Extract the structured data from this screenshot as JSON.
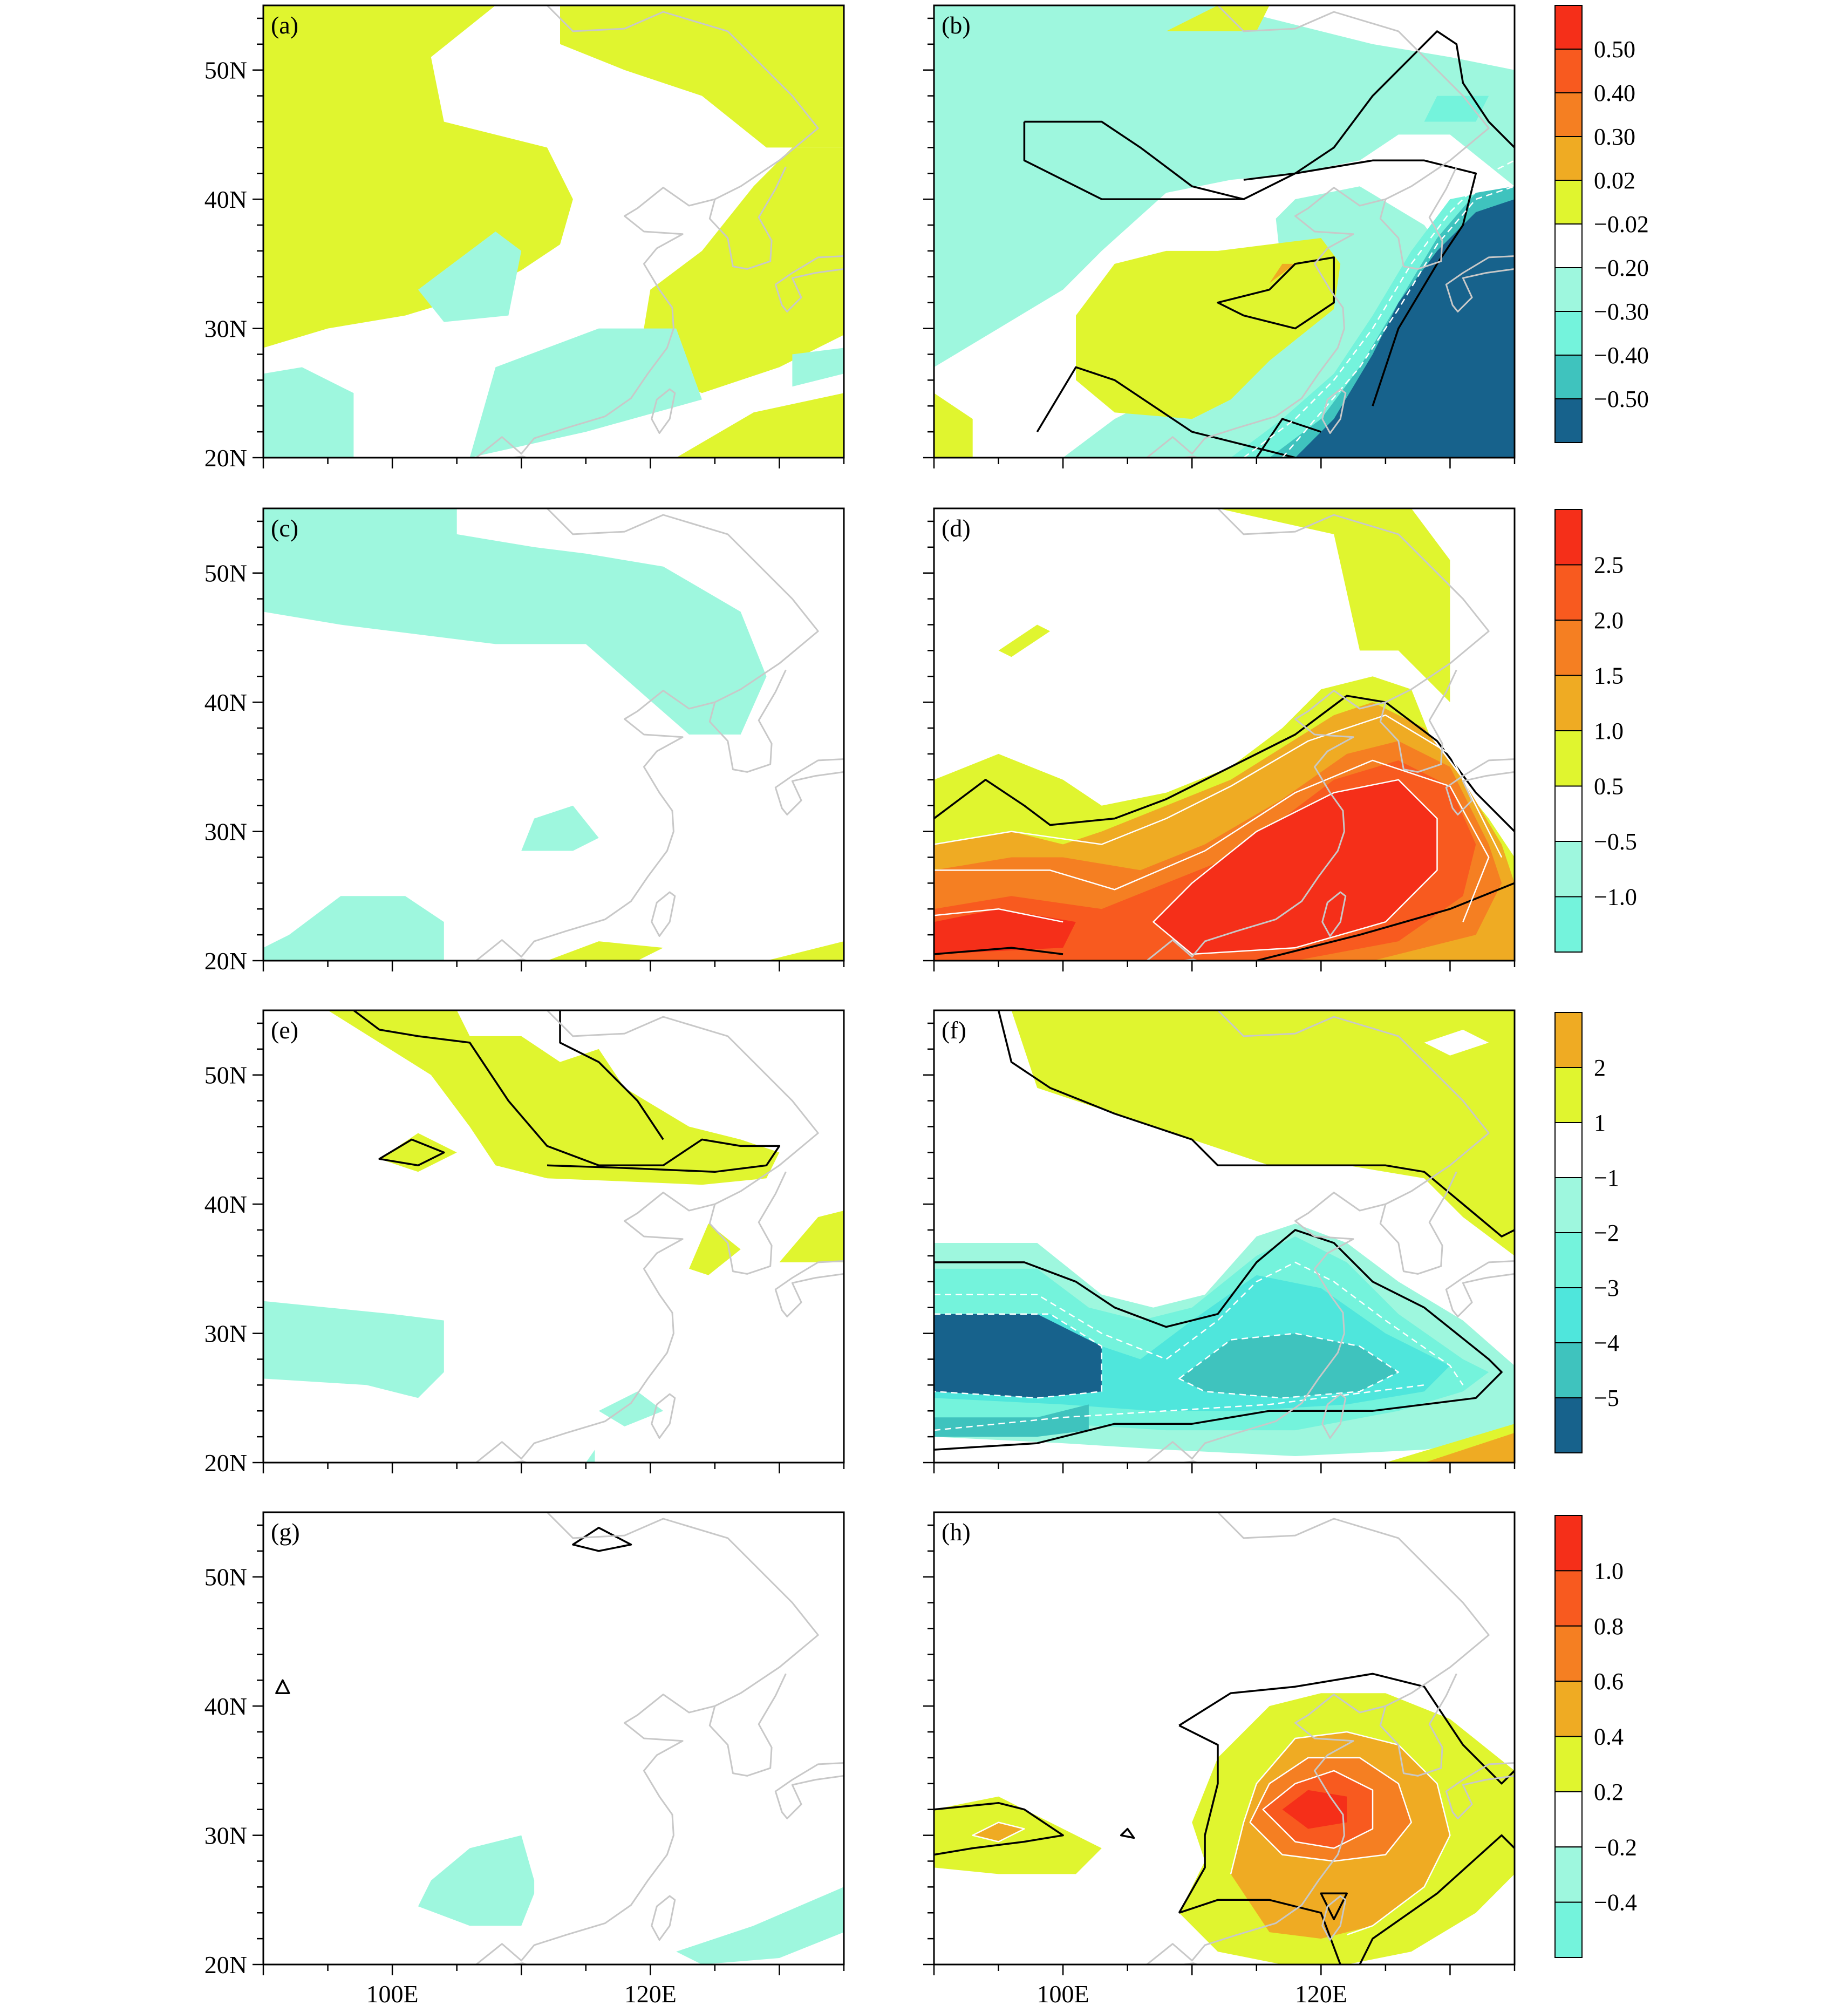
{
  "figure": {
    "panel_labels": [
      "(a)",
      "(b)",
      "(c)",
      "(d)",
      "(e)",
      "(f)",
      "(g)",
      "(h)"
    ],
    "lat_ticks": [
      "50N",
      "40N",
      "30N",
      "20N"
    ],
    "lon_ticks": [
      "100E",
      "120E"
    ]
  },
  "palette": {
    "yellow": "#e0f52f",
    "white": "#ffffff",
    "mint": "#9ef7de",
    "aqua": "#74f3dc",
    "cyan": "#4fe6dc",
    "teal": "#3fc3be",
    "navy": "#17628c",
    "orange_light": "#efab23",
    "orange": "#f57f22",
    "orange_red": "#f85a1f",
    "red": "#f52f19",
    "coast": "#c8c8c8",
    "contour_dark": "#000000",
    "contour_light": "#ffffff"
  },
  "chart_data": [
    {
      "type": "heatmap",
      "panel": "(a)",
      "lat_range": [
        20,
        55
      ],
      "lon_range": [
        90,
        135
      ],
      "fill_levels": [
        "0.02",
        "-0.02",
        "-0.20"
      ],
      "description_levels_used": [
        "yellow",
        "mint"
      ]
    },
    {
      "type": "heatmap",
      "panel": "(b)",
      "lat_range": [
        20,
        55
      ],
      "lon_range": [
        90,
        135
      ],
      "colorbar": {
        "labels": [
          "0.50",
          "0.40",
          "0.30",
          "0.02",
          "−0.02",
          "−0.20",
          "−0.30",
          "−0.40",
          "−0.50"
        ],
        "colors": [
          "#f52f19",
          "#f85a1f",
          "#f57f22",
          "#efab23",
          "#e0f52f",
          "#ffffff",
          "#9ef7de",
          "#74f3dc",
          "#3fc3be",
          "#17628c"
        ]
      }
    },
    {
      "type": "heatmap",
      "panel": "(c)",
      "lat_range": [
        20,
        55
      ],
      "lon_range": [
        90,
        135
      ]
    },
    {
      "type": "heatmap",
      "panel": "(d)",
      "lat_range": [
        20,
        55
      ],
      "lon_range": [
        90,
        135
      ],
      "colorbar": {
        "labels": [
          "2.5",
          "2.0",
          "1.5",
          "1.0",
          "0.5",
          "−0.5",
          "−1.0"
        ],
        "colors": [
          "#f52f19",
          "#f85a1f",
          "#f57f22",
          "#efab23",
          "#e0f52f",
          "#ffffff",
          "#9ef7de",
          "#74f3dc"
        ]
      }
    },
    {
      "type": "heatmap",
      "panel": "(e)",
      "lat_range": [
        20,
        55
      ],
      "lon_range": [
        90,
        135
      ]
    },
    {
      "type": "heatmap",
      "panel": "(f)",
      "lat_range": [
        20,
        55
      ],
      "lon_range": [
        90,
        135
      ],
      "colorbar": {
        "labels": [
          "2",
          "1",
          "−1",
          "−2",
          "−3",
          "−4",
          "−5"
        ],
        "colors": [
          "#efab23",
          "#e0f52f",
          "#ffffff",
          "#9ef7de",
          "#74f3dc",
          "#4fe6dc",
          "#3fc3be",
          "#17628c"
        ]
      }
    },
    {
      "type": "heatmap",
      "panel": "(g)",
      "lat_range": [
        20,
        55
      ],
      "lon_range": [
        90,
        135
      ]
    },
    {
      "type": "heatmap",
      "panel": "(h)",
      "lat_range": [
        20,
        55
      ],
      "lon_range": [
        90,
        135
      ],
      "colorbar": {
        "labels": [
          "1.0",
          "0.8",
          "0.6",
          "0.4",
          "0.2",
          "−0.2",
          "−0.4"
        ],
        "colors": [
          "#f52f19",
          "#f85a1f",
          "#f57f22",
          "#efab23",
          "#e0f52f",
          "#ffffff",
          "#9ef7de",
          "#74f3dc"
        ]
      }
    }
  ]
}
